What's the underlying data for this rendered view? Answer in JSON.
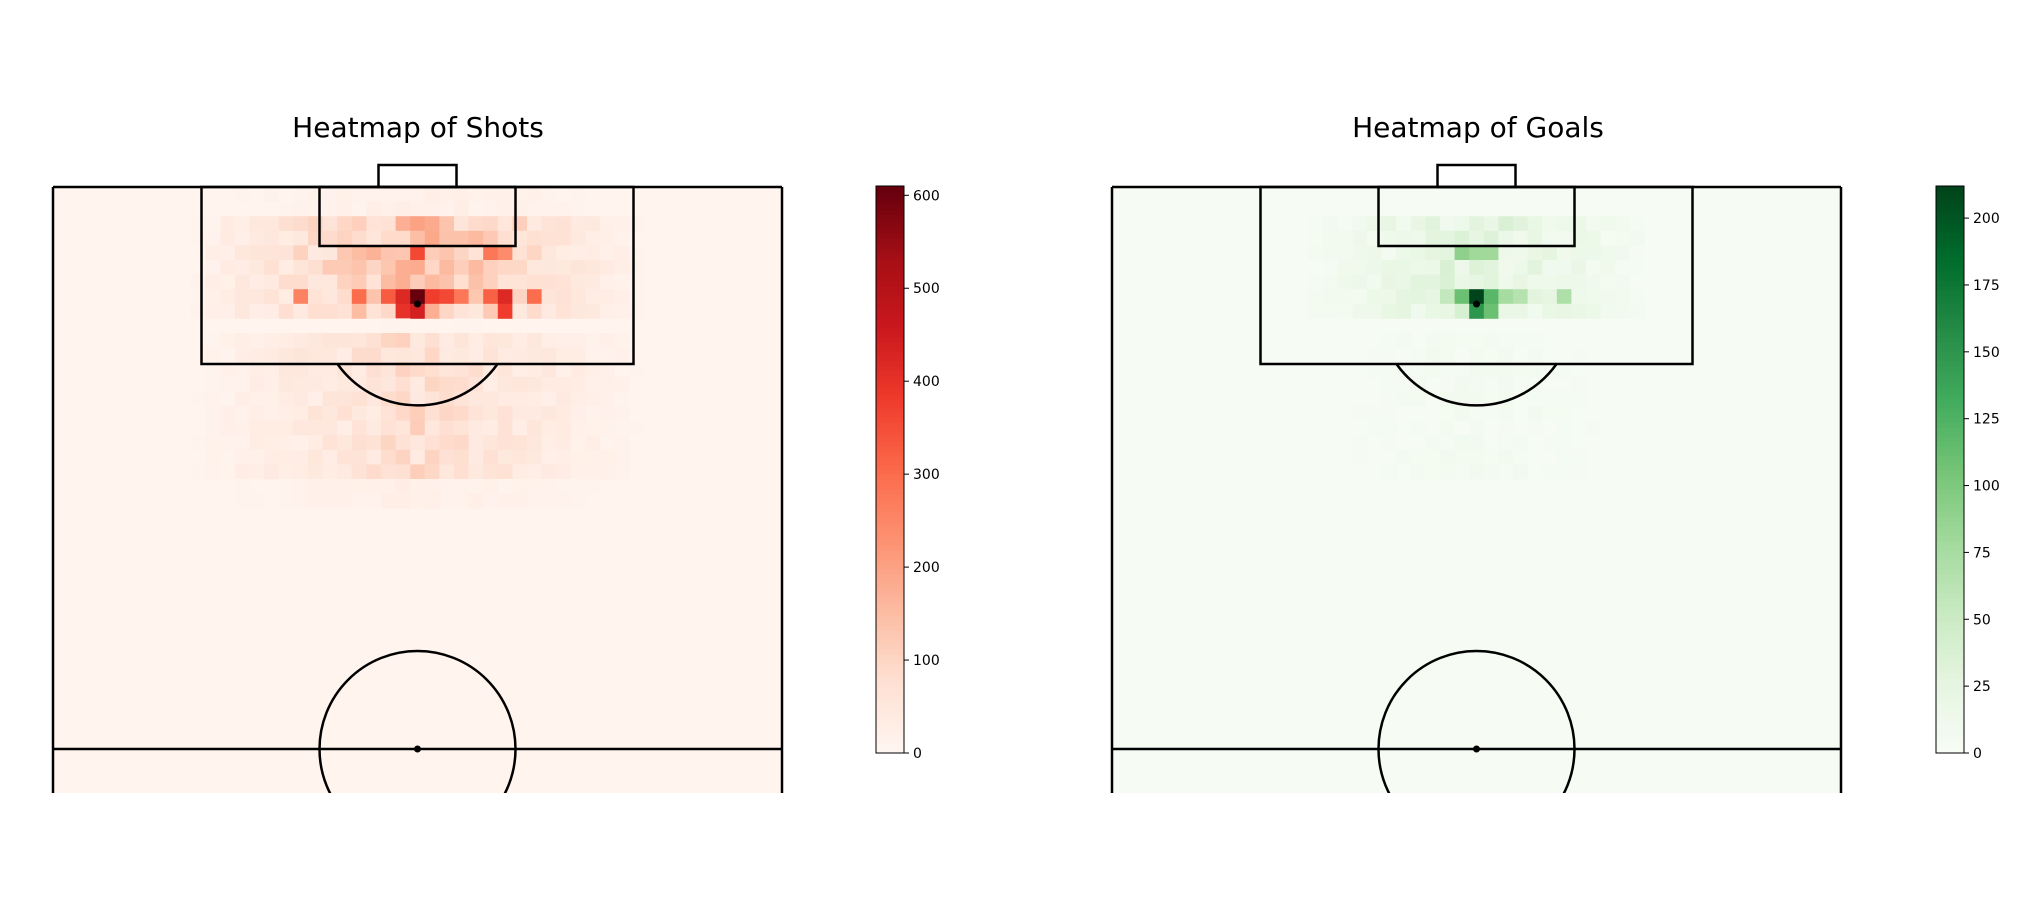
{
  "chart_data": [
    {
      "type": "heatmap",
      "title": "Heatmap of Shots",
      "colormap": "Reds",
      "colormap_stops": [
        "#fff5f0",
        "#fee0d2",
        "#fcbba1",
        "#fc9272",
        "#fb6a4a",
        "#ef3b2c",
        "#cb181d",
        "#a50f15",
        "#67000d"
      ],
      "colorbar_range": [
        0,
        610
      ],
      "colorbar_ticks": [
        "0",
        "100",
        "200",
        "300",
        "400",
        "500",
        "600"
      ],
      "colorbar_tick_values": [
        0,
        100,
        200,
        300,
        400,
        500,
        600
      ],
      "hot_cells": [
        {
          "x": 0,
          "y": 8,
          "v": 610
        },
        {
          "x": -1,
          "y": 8,
          "v": 420
        },
        {
          "x": 1,
          "y": 8,
          "v": 380
        },
        {
          "x": 2,
          "y": 8,
          "v": 360
        },
        {
          "x": 0,
          "y": 9,
          "v": 440
        },
        {
          "x": -1,
          "y": 9,
          "v": 400
        },
        {
          "x": 3,
          "y": 8,
          "v": 280
        },
        {
          "x": -2,
          "y": 8,
          "v": 330
        },
        {
          "x": 6,
          "y": 8,
          "v": 420
        },
        {
          "x": 6,
          "y": 9,
          "v": 380
        },
        {
          "x": 5,
          "y": 8,
          "v": 320
        },
        {
          "x": 8,
          "y": 8,
          "v": 300
        },
        {
          "x": -8,
          "y": 8,
          "v": 260
        },
        {
          "x": 0,
          "y": 5,
          "v": 360
        },
        {
          "x": 5,
          "y": 5,
          "v": 280
        },
        {
          "x": 6,
          "y": 5,
          "v": 240
        },
        {
          "x": -4,
          "y": 8,
          "v": 300
        }
      ],
      "background_value": 5
    },
    {
      "type": "heatmap",
      "title": "Heatmap of Goals",
      "colormap": "Greens",
      "colormap_stops": [
        "#f7fcf5",
        "#e5f5e0",
        "#c7e9c0",
        "#a1d99b",
        "#74c476",
        "#41ab5d",
        "#238b45",
        "#006d2c",
        "#00441b"
      ],
      "colorbar_range": [
        0,
        212
      ],
      "colorbar_ticks": [
        "0",
        "25",
        "50",
        "75",
        "100",
        "125",
        "150",
        "175",
        "200"
      ],
      "colorbar_tick_values": [
        0,
        25,
        50,
        75,
        100,
        125,
        150,
        175,
        200
      ],
      "hot_cells": [
        {
          "x": 0,
          "y": 8,
          "v": 212
        },
        {
          "x": 0,
          "y": 9,
          "v": 150
        },
        {
          "x": 1,
          "y": 8,
          "v": 120
        },
        {
          "x": 1,
          "y": 9,
          "v": 110
        },
        {
          "x": -1,
          "y": 8,
          "v": 110
        },
        {
          "x": -1,
          "y": 5,
          "v": 90
        },
        {
          "x": 0,
          "y": 5,
          "v": 80
        },
        {
          "x": 1,
          "y": 5,
          "v": 80
        },
        {
          "x": 2,
          "y": 8,
          "v": 75
        },
        {
          "x": 3,
          "y": 8,
          "v": 65
        },
        {
          "x": 6,
          "y": 8,
          "v": 70
        },
        {
          "x": -2,
          "y": 8,
          "v": 55
        }
      ],
      "background_value": 2
    }
  ]
}
